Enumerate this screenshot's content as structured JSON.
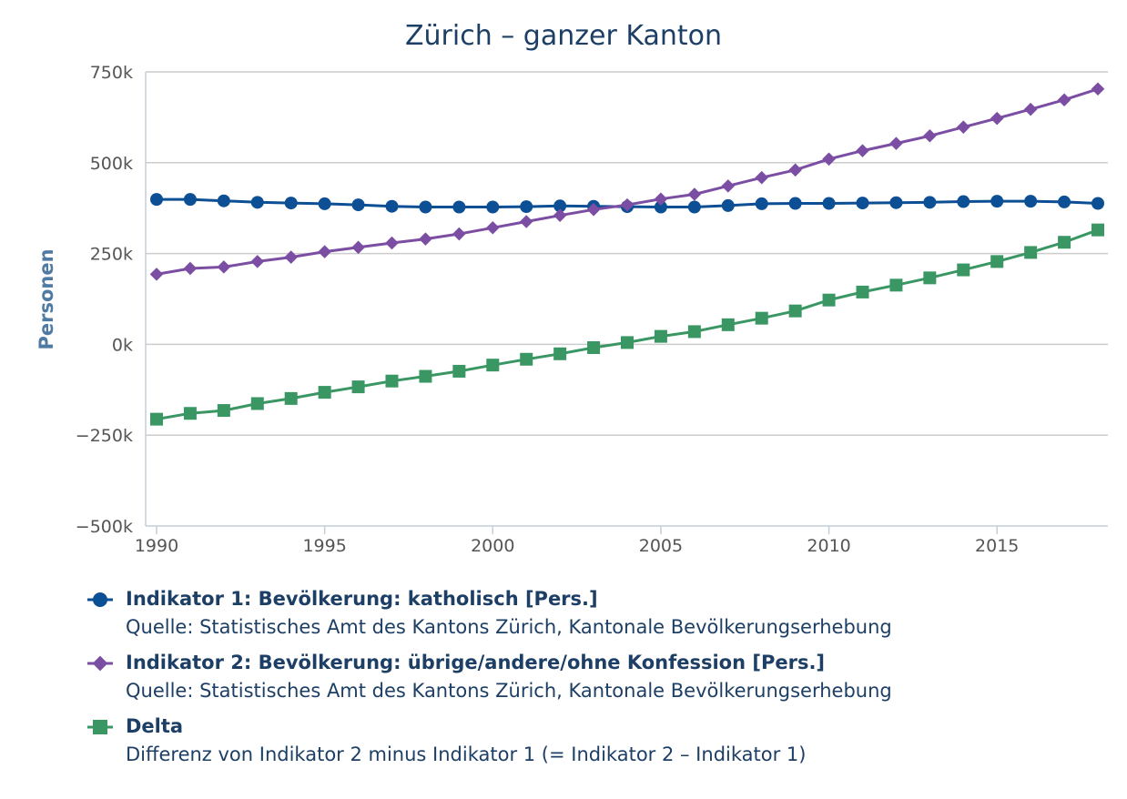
{
  "chart_data": {
    "type": "line",
    "title": "Zürich – ganzer Kanton",
    "ylabel": "Personen",
    "xlabel": "",
    "x": [
      1990,
      1991,
      1992,
      1993,
      1994,
      1995,
      1996,
      1997,
      1998,
      1999,
      2000,
      2001,
      2002,
      2003,
      2004,
      2005,
      2006,
      2007,
      2008,
      2009,
      2010,
      2011,
      2012,
      2013,
      2014,
      2015,
      2016,
      2017,
      2018
    ],
    "xlim": [
      1990,
      2018
    ],
    "x_ticks": [
      1990,
      1995,
      2000,
      2005,
      2010,
      2015
    ],
    "x_tick_labels": [
      "1990",
      "1995",
      "2000",
      "2005",
      "2010",
      "2015"
    ],
    "ylim": [
      -500000,
      750000
    ],
    "y_ticks": [
      -500000,
      -250000,
      0,
      250000,
      500000,
      750000
    ],
    "y_tick_labels": [
      "−500k",
      "−250k",
      "0k",
      "250k",
      "500k",
      "750k"
    ],
    "grid": "horizontal",
    "legend_position": "bottom",
    "series": [
      {
        "name": "Indikator 1: Bevölkerung: katholisch [Pers.]",
        "source": "Quelle: Statistisches Amt des Kantons Zürich, Kantonale Bevölkerungserhebung",
        "color": "#0d4f94",
        "marker": "circle",
        "values": [
          399000,
          399000,
          395000,
          391000,
          389000,
          387000,
          384000,
          380000,
          378000,
          378000,
          378000,
          379000,
          381000,
          380000,
          379000,
          378000,
          378000,
          382000,
          387000,
          388000,
          388000,
          389000,
          390000,
          391000,
          393000,
          394000,
          394000,
          392000,
          388000
        ]
      },
      {
        "name": "Indikator 2: Bevölkerung: übrige/andere/ohne Konfession [Pers.]",
        "source": "Quelle: Statistisches Amt des Kantons Zürich, Kantonale Bevölkerungserhebung",
        "color": "#7b4ea3",
        "marker": "diamond",
        "values": [
          193000,
          209000,
          213000,
          228000,
          240000,
          255000,
          267000,
          279000,
          290000,
          304000,
          321000,
          338000,
          355000,
          371000,
          384000,
          400000,
          413000,
          436000,
          459000,
          480000,
          510000,
          533000,
          553000,
          574000,
          598000,
          622000,
          647000,
          673000,
          703000
        ]
      },
      {
        "name": "Delta",
        "source": "Differenz von Indikator 2 minus Indikator 1 (= Indikator 2 – Indikator 1)",
        "color": "#3a9763",
        "marker": "square",
        "values": [
          -206000,
          -190000,
          -182000,
          -163000,
          -149000,
          -132000,
          -117000,
          -101000,
          -88000,
          -74000,
          -57000,
          -41000,
          -26000,
          -9000,
          5000,
          22000,
          35000,
          54000,
          72000,
          92000,
          122000,
          144000,
          163000,
          183000,
          205000,
          228000,
          253000,
          281000,
          315000
        ]
      }
    ]
  }
}
